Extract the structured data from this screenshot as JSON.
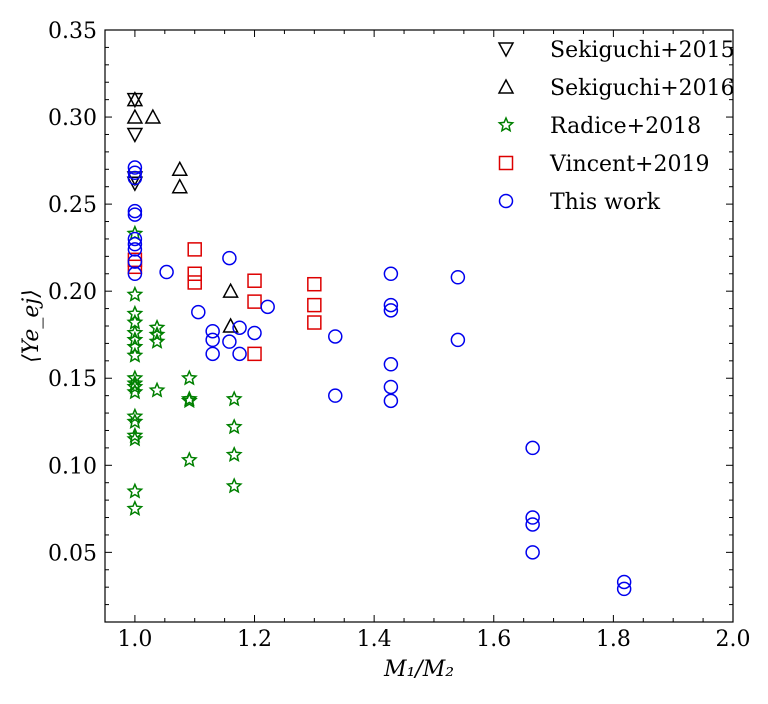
{
  "chart_data": {
    "type": "scatter",
    "xlabel": "M₁/M₂",
    "ylabel": "⟨Ye_ej⟩",
    "xlim": [
      0.95,
      2.0
    ],
    "ylim": [
      0.01,
      0.35
    ],
    "xticks": [
      1.0,
      1.2,
      1.4,
      1.6,
      1.8,
      2.0
    ],
    "xtick_labels": [
      "1.0",
      "1.2",
      "1.4",
      "1.6",
      "1.8",
      "2.0"
    ],
    "yticks": [
      0.05,
      0.1,
      0.15,
      0.2,
      0.25,
      0.3,
      0.35
    ],
    "ytick_labels": [
      "0.05",
      "0.10",
      "0.15",
      "0.20",
      "0.25",
      "0.30",
      "0.35"
    ],
    "grid": false,
    "legend_position": "top-right",
    "series": [
      {
        "name": "Sekiguchi+2015",
        "marker": "triangle-down",
        "color": "#000000",
        "points": [
          [
            1.0,
            0.31
          ],
          [
            1.0,
            0.29
          ],
          [
            1.0,
            0.265
          ],
          [
            1.0,
            0.262
          ]
        ]
      },
      {
        "name": "Sekiguchi+2016",
        "marker": "triangle-up",
        "color": "#000000",
        "points": [
          [
            1.0,
            0.31
          ],
          [
            1.0,
            0.3
          ],
          [
            1.03,
            0.3
          ],
          [
            1.075,
            0.27
          ],
          [
            1.075,
            0.26
          ],
          [
            1.16,
            0.2
          ],
          [
            1.16,
            0.18
          ]
        ]
      },
      {
        "name": "Radice+2018",
        "marker": "star",
        "color": "#008000",
        "points": [
          [
            1.0,
            0.233
          ],
          [
            1.0,
            0.198
          ],
          [
            1.0,
            0.187
          ],
          [
            1.0,
            0.182
          ],
          [
            1.0,
            0.176
          ],
          [
            1.0,
            0.172
          ],
          [
            1.0,
            0.168
          ],
          [
            1.0,
            0.163
          ],
          [
            1.0,
            0.15
          ],
          [
            1.0,
            0.147
          ],
          [
            1.0,
            0.145
          ],
          [
            1.0,
            0.142
          ],
          [
            1.0,
            0.128
          ],
          [
            1.0,
            0.125
          ],
          [
            1.0,
            0.117
          ],
          [
            1.0,
            0.115
          ],
          [
            1.0,
            0.085
          ],
          [
            1.0,
            0.075
          ],
          [
            1.037,
            0.179
          ],
          [
            1.037,
            0.175
          ],
          [
            1.037,
            0.171
          ],
          [
            1.037,
            0.143
          ],
          [
            1.091,
            0.15
          ],
          [
            1.091,
            0.138
          ],
          [
            1.091,
            0.137
          ],
          [
            1.091,
            0.103
          ],
          [
            1.166,
            0.138
          ],
          [
            1.166,
            0.122
          ],
          [
            1.166,
            0.106
          ],
          [
            1.166,
            0.088
          ]
        ]
      },
      {
        "name": "Vincent+2019",
        "marker": "square",
        "color": "#dd0000",
        "points": [
          [
            1.0,
            0.218
          ],
          [
            1.0,
            0.214
          ],
          [
            1.1,
            0.224
          ],
          [
            1.1,
            0.21
          ],
          [
            1.1,
            0.205
          ],
          [
            1.2,
            0.206
          ],
          [
            1.2,
            0.194
          ],
          [
            1.2,
            0.164
          ],
          [
            1.3,
            0.204
          ],
          [
            1.3,
            0.192
          ],
          [
            1.3,
            0.182
          ]
        ]
      },
      {
        "name": "This work",
        "marker": "circle",
        "color": "#0000ee",
        "points": [
          [
            1.0,
            0.271
          ],
          [
            1.0,
            0.268
          ],
          [
            1.0,
            0.265
          ],
          [
            1.0,
            0.246
          ],
          [
            1.0,
            0.244
          ],
          [
            1.0,
            0.23
          ],
          [
            1.0,
            0.227
          ],
          [
            1.0,
            0.224
          ],
          [
            1.0,
            0.217
          ],
          [
            1.0,
            0.21
          ],
          [
            1.053,
            0.211
          ],
          [
            1.106,
            0.188
          ],
          [
            1.13,
            0.177
          ],
          [
            1.13,
            0.172
          ],
          [
            1.13,
            0.164
          ],
          [
            1.158,
            0.219
          ],
          [
            1.158,
            0.171
          ],
          [
            1.175,
            0.179
          ],
          [
            1.175,
            0.164
          ],
          [
            1.2,
            0.176
          ],
          [
            1.222,
            0.191
          ],
          [
            1.335,
            0.174
          ],
          [
            1.335,
            0.14
          ],
          [
            1.428,
            0.21
          ],
          [
            1.428,
            0.192
          ],
          [
            1.428,
            0.189
          ],
          [
            1.428,
            0.158
          ],
          [
            1.428,
            0.145
          ],
          [
            1.428,
            0.137
          ],
          [
            1.54,
            0.208
          ],
          [
            1.54,
            0.172
          ],
          [
            1.665,
            0.11
          ],
          [
            1.665,
            0.07
          ],
          [
            1.665,
            0.066
          ],
          [
            1.665,
            0.05
          ],
          [
            1.818,
            0.033
          ],
          [
            1.818,
            0.029
          ]
        ]
      }
    ]
  }
}
